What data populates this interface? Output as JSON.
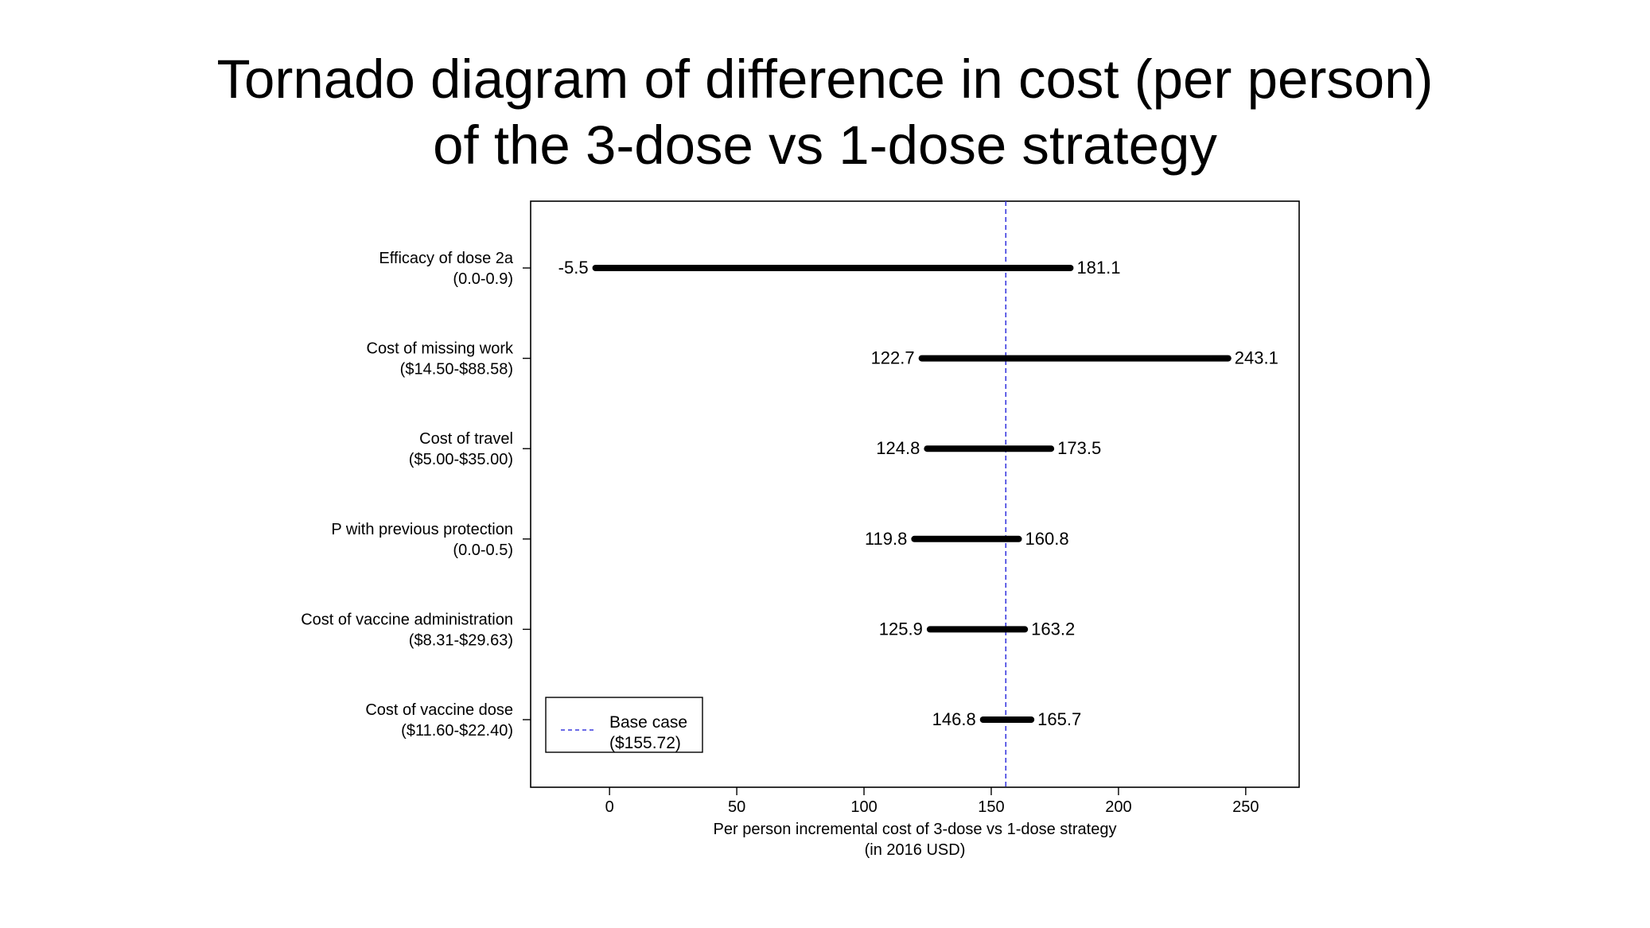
{
  "slide": {
    "title_line1": "Tornado diagram of difference in cost (per person)",
    "title_line2": "of the 3-dose vs 1-dose strategy"
  },
  "chart_data": {
    "type": "bar",
    "subtype": "tornado",
    "xlabel_line1": "Per person incremental cost of 3-dose vs 1-dose strategy",
    "xlabel_line2": "(in 2016 USD)",
    "xlim": [
      -31,
      271
    ],
    "xticks": [
      0,
      50,
      100,
      150,
      200,
      250
    ],
    "base_case": 155.72,
    "legend": {
      "position": "bottom-left",
      "line1": "Base case",
      "line2": "($155.72)"
    },
    "colors": {
      "bars": "#000000",
      "base_line": "#3a3adf",
      "frame": "#000000"
    },
    "parameters": [
      {
        "name": "Efficacy of dose 2a",
        "range": "(0.0-0.9)",
        "low": -5.5,
        "high": 181.1,
        "low_label": "-5.5",
        "high_label": "181.1"
      },
      {
        "name": "Cost of missing work",
        "range": "($14.50-$88.58)",
        "low": 122.7,
        "high": 243.1,
        "low_label": "122.7",
        "high_label": "243.1"
      },
      {
        "name": "Cost of travel",
        "range": "($5.00-$35.00)",
        "low": 124.8,
        "high": 173.5,
        "low_label": "124.8",
        "high_label": "173.5"
      },
      {
        "name": "P with previous protection",
        "range": "(0.0-0.5)",
        "low": 119.8,
        "high": 160.8,
        "low_label": "119.8",
        "high_label": "160.8"
      },
      {
        "name": "Cost of vaccine administration",
        "range": "($8.31-$29.63)",
        "low": 125.9,
        "high": 163.2,
        "low_label": "125.9",
        "high_label": "163.2"
      },
      {
        "name": "Cost of vaccine dose",
        "range": "($11.60-$22.40)",
        "low": 146.8,
        "high": 165.7,
        "low_label": "146.8",
        "high_label": "165.7"
      }
    ]
  }
}
